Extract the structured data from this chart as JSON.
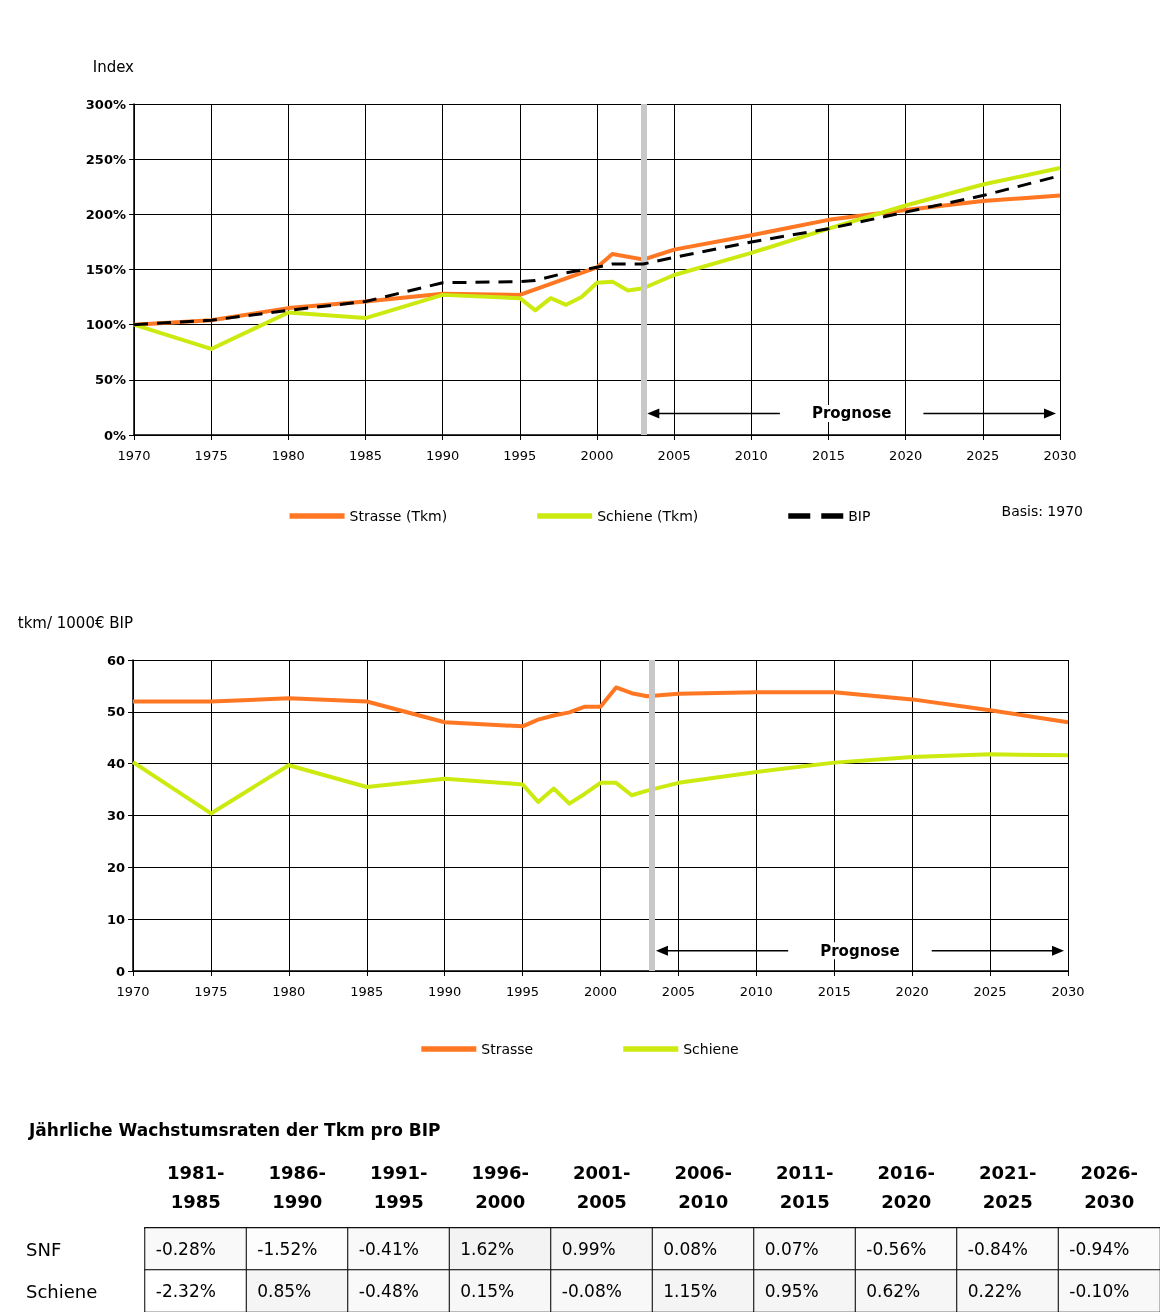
{
  "chart_data": [
    {
      "type": "line",
      "ylabel": "Index",
      "x": [
        1970,
        1975,
        1980,
        1985,
        1990,
        1995,
        1996,
        1997,
        1998,
        1999,
        2000,
        2001,
        2002,
        2003,
        2005,
        2010,
        2015,
        2020,
        2025,
        2030
      ],
      "series": [
        {
          "name": "Strasse (Tkm)",
          "color": "#ff7722",
          "values": [
            100,
            104,
            115,
            121,
            128,
            127,
            null,
            null,
            null,
            null,
            152,
            164,
            null,
            159,
            168,
            181,
            195,
            204,
            212,
            217
          ]
        },
        {
          "name": "Schiene (Tkm)",
          "color": "#ccea10",
          "values": [
            100,
            78,
            111,
            106,
            127,
            124,
            113,
            124,
            118,
            125,
            138,
            139,
            131,
            133,
            145,
            165,
            187,
            208,
            227,
            242
          ]
        },
        {
          "name": "BIP",
          "color": "#000000",
          "line_style": "dashed",
          "values": [
            100,
            104,
            113,
            121,
            138,
            139,
            140,
            null,
            147,
            null,
            152,
            155,
            null,
            155,
            161,
            175,
            187,
            202,
            217,
            235
          ]
        }
      ],
      "xlim": [
        1970,
        2030
      ],
      "xticks": [
        1970,
        1975,
        1980,
        1985,
        1990,
        1995,
        2000,
        2005,
        2010,
        2015,
        2020,
        2025,
        2030
      ],
      "ylim": [
        0,
        300
      ],
      "yticks": [
        {
          "value": 0,
          "label": "0%"
        },
        {
          "value": 50,
          "label": "50%"
        },
        {
          "value": 100,
          "label": "100%"
        },
        {
          "value": 150,
          "label": "150%"
        },
        {
          "value": 200,
          "label": "200%"
        },
        {
          "value": 250,
          "label": "250%"
        },
        {
          "value": 300,
          "label": "300%"
        }
      ],
      "grid": true,
      "legend": "bottom",
      "marker": "none",
      "line_style": "solid",
      "ref_lines": [
        {
          "axis": "x",
          "value": 2003,
          "color": "#c8c8c8"
        }
      ],
      "annotations": [
        "Prognose",
        "Basis: 1970"
      ]
    },
    {
      "type": "line",
      "ylabel": "tkm/ 1000€ BIP",
      "x": [
        1970,
        1975,
        1980,
        1985,
        1990,
        1995,
        1996,
        1997,
        1998,
        1999,
        2000,
        2001,
        2002,
        2003,
        2005,
        2010,
        2015,
        2020,
        2025,
        2030
      ],
      "series": [
        {
          "name": "Strasse",
          "color": "#ff7722",
          "values": [
            52.0,
            52.0,
            52.6,
            52.0,
            48.0,
            47.2,
            48.5,
            49.3,
            49.9,
            51.0,
            51.0,
            54.7,
            53.6,
            53.0,
            53.5,
            53.8,
            53.8,
            52.4,
            50.3,
            48.0
          ]
        },
        {
          "name": "Schiene",
          "color": "#ccea10",
          "values": [
            40.3,
            30.4,
            39.7,
            35.5,
            37.1,
            36.0,
            32.6,
            35.2,
            32.3,
            34.2,
            36.3,
            36.3,
            33.9,
            34.8,
            36.3,
            38.4,
            40.2,
            41.3,
            41.8,
            41.6
          ]
        }
      ],
      "xlim": [
        1970,
        2030
      ],
      "xticks": [
        1970,
        1975,
        1980,
        1985,
        1990,
        1995,
        2000,
        2005,
        2010,
        2015,
        2020,
        2025,
        2030
      ],
      "ylim": [
        0,
        60
      ],
      "yticks": [
        0,
        10,
        20,
        30,
        40,
        50,
        60
      ],
      "grid": true,
      "legend": "bottom",
      "marker": "none",
      "line_style": "solid",
      "ref_lines": [
        {
          "axis": "x",
          "value": 2003.3,
          "color": "#c8c8c8"
        }
      ],
      "annotations": [
        "Prognose"
      ]
    },
    {
      "type": "heatmap",
      "title": "Jährliche Wachstumsraten der Tkm pro BIP",
      "categories": [
        "1981-1985",
        "1986-1990",
        "1991-1995",
        "1996-2000",
        "2001-2005",
        "2006-2010",
        "2011-2015",
        "2016-2020",
        "2021-2025",
        "2026-2030"
      ],
      "y_categories": [
        "SNF",
        "Schiene"
      ],
      "cells": [
        [
          -0.28,
          -1.52,
          -0.41,
          1.62,
          0.99,
          0.08,
          0.07,
          -0.56,
          -0.84,
          -0.94
        ],
        [
          -2.32,
          0.85,
          -0.48,
          0.15,
          -0.08,
          1.15,
          0.95,
          0.62,
          0.22,
          -0.1
        ]
      ],
      "cell_labels": [
        [
          "-0.28%",
          "-1.52%",
          "-0.41%",
          "1.62%",
          "0.99%",
          "0.08%",
          "0.07%",
          "-0.56%",
          "-0.84%",
          "-0.94%"
        ],
        [
          "-2.32%",
          "0.85%",
          "-0.48%",
          "0.15%",
          "-0.08%",
          "1.15%",
          "0.95%",
          "0.62%",
          "0.22%",
          "-0.10%"
        ]
      ]
    }
  ]
}
